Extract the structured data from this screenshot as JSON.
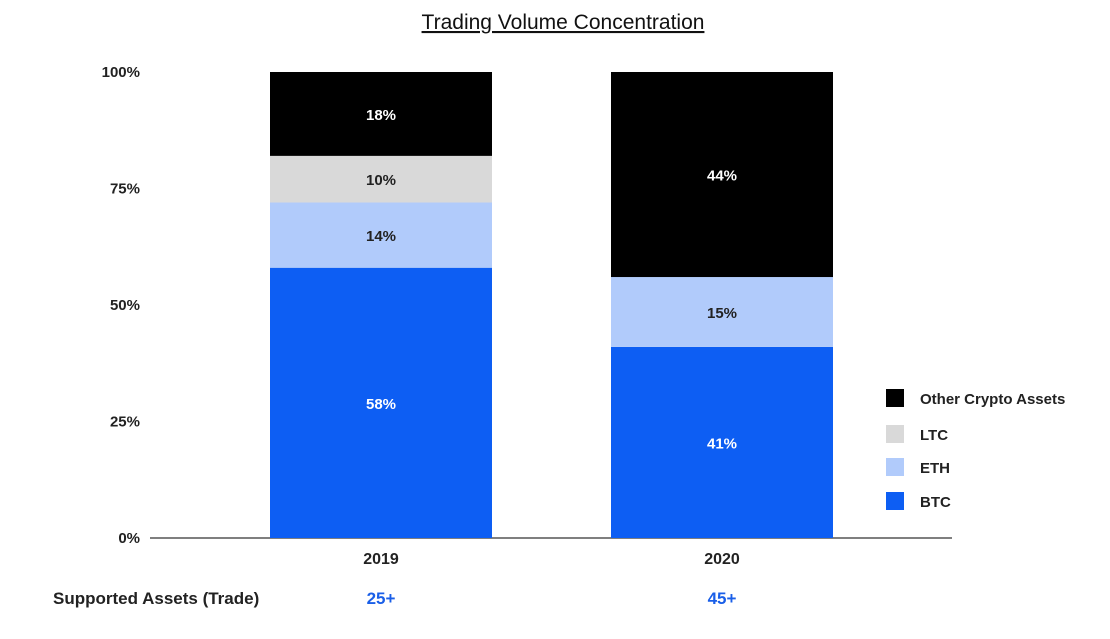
{
  "chart_data": {
    "type": "bar",
    "stacked": true,
    "title": "Trading Volume Concentration",
    "categories": [
      "2019",
      "2020"
    ],
    "series": [
      {
        "name": "BTC",
        "values": [
          58,
          41
        ],
        "labels": [
          "58%",
          "41%"
        ],
        "color": "#0d5ef3"
      },
      {
        "name": "ETH",
        "values": [
          14,
          15
        ],
        "labels": [
          "14%",
          "15%"
        ],
        "color": "#b1cbfb"
      },
      {
        "name": "LTC",
        "values": [
          10,
          0
        ],
        "labels": [
          "10%",
          ""
        ],
        "color": "#d9d9d9"
      },
      {
        "name": "Other Crypto Assets",
        "values": [
          18,
          44
        ],
        "labels": [
          "18%",
          "44%"
        ],
        "color": "#000000"
      }
    ],
    "label_colors": {
      "BTC": "#ffffff",
      "ETH": "#222222",
      "LTC": "#222222",
      "Other Crypto Assets": "#ffffff"
    },
    "ylim": [
      0,
      100
    ],
    "yticks": [
      "0%",
      "25%",
      "50%",
      "75%",
      "100%"
    ],
    "ytick_values": [
      0,
      25,
      50,
      75,
      100
    ],
    "xlabel": "",
    "ylabel": "",
    "grid": false,
    "legend": {
      "position": "right",
      "entries": [
        "Other Crypto Assets",
        "LTC",
        "ETH",
        "BTC"
      ]
    },
    "footer": {
      "label": "Supported Assets (Trade)",
      "values": [
        "25+",
        "45+"
      ],
      "value_color": "#1a5fe8"
    }
  }
}
